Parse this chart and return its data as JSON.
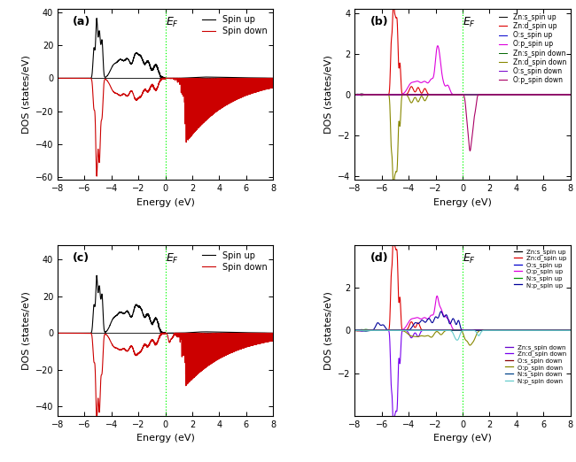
{
  "xlim": [
    -8,
    8
  ],
  "panel_labels": [
    "(a)",
    "(b)",
    "(c)",
    "(d)"
  ],
  "xlabel": "Energy (eV)",
  "ylabel": "DOS (states/eV)",
  "panel_a": {
    "ylim": [
      -62,
      42
    ],
    "yticks": [
      -60,
      -40,
      -20,
      0,
      20,
      40
    ],
    "spin_up_color": "#000000",
    "spin_down_color": "#cc0000",
    "legend": [
      "Spin up",
      "Spin down"
    ]
  },
  "panel_b": {
    "ylim": [
      -4.2,
      4.2
    ],
    "yticks": [
      -4,
      -2,
      0,
      2,
      4
    ],
    "colors": {
      "Zn_s_up": "#000000",
      "Zn_d_up": "#dd0000",
      "O_s_up": "#0000cc",
      "O_p_up": "#dd00dd",
      "Zn_s_dn": "#006600",
      "Zn_d_dn": "#888800",
      "O_s_dn": "#7700cc",
      "O_p_dn": "#aa0066"
    },
    "legend": [
      "Zn:s_spin up",
      "Zn:d_spin up",
      "O:s_spin up",
      "O:p_spin up",
      "Zn:s_spin down",
      "Zn:d_spin down",
      "O:s_spin down",
      "O:p_spin down"
    ]
  },
  "panel_c": {
    "ylim": [
      -45,
      48
    ],
    "yticks": [
      -40,
      -20,
      0,
      20,
      40
    ],
    "spin_up_color": "#000000",
    "spin_down_color": "#cc0000",
    "legend": [
      "Spin up",
      "Spin down"
    ]
  },
  "panel_d": {
    "ylim": [
      -4.0,
      4.0
    ],
    "yticks": [
      -2,
      0,
      2
    ],
    "colors": {
      "Zn_s_up": "#000000",
      "Zn_d_up": "#dd0000",
      "O_s_up": "#0000cc",
      "O_p_up": "#dd00dd",
      "N_s_up": "#009900",
      "N_p_up": "#000099",
      "Zn_s_dn": "#6600cc",
      "Zn_d_dn": "#7700ee",
      "O_s_dn": "#880000",
      "O_p_dn": "#888800",
      "N_s_dn": "#004488",
      "N_p_dn": "#66cccc"
    },
    "legend_up": [
      "Zn:s_spin up",
      "Zn:d_spin up",
      "O:s_spin up",
      "O:p_spin up",
      "N:s_spin up",
      "N:p_spin up"
    ],
    "legend_dn": [
      "Zn:s_spin down",
      "Zn:d_spin down",
      "O:s_spin down",
      "O:p_spin down",
      "N:s_spin down",
      "N:p_spin down"
    ]
  }
}
